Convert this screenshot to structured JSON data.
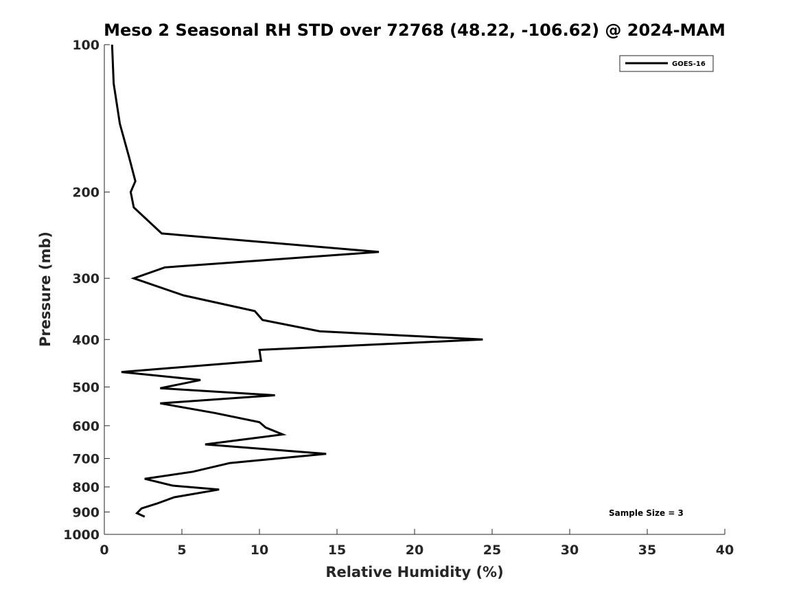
{
  "chart_data": {
    "type": "line",
    "title": "Meso 2 Seasonal RH STD over 72768 (48.22, -106.62) @ 2024-MAM",
    "xlabel": "Relative Humidity (%)",
    "ylabel": "Pressure (mb)",
    "xlim": [
      0,
      40
    ],
    "ylim": [
      1000,
      100
    ],
    "yscale": "log",
    "grid": false,
    "legend_position": "top-right",
    "xticks": [
      0,
      5,
      10,
      15,
      20,
      25,
      30,
      35,
      40
    ],
    "yticks": [
      100,
      200,
      300,
      400,
      500,
      600,
      700,
      800,
      900,
      1000
    ],
    "annotation": "Sample Size = 3",
    "series": [
      {
        "name": "GOES-16",
        "color": "#000000",
        "x": [
          0.5,
          0.6,
          1.0,
          1.6,
          2.0,
          1.7,
          1.9,
          3.7,
          17.7,
          3.9,
          1.9,
          5.1,
          9.7,
          10.2,
          13.9,
          24.4,
          10.0,
          10.1,
          1.1,
          6.2,
          3.6,
          11.0,
          3.6,
          7.1,
          10.0,
          10.4,
          11.5,
          6.5,
          14.3,
          8.1,
          5.7,
          2.6,
          4.4,
          7.4,
          4.5,
          3.4,
          2.4,
          2.1,
          2.6
        ],
        "y": [
          100,
          120,
          145,
          170,
          190,
          200,
          215,
          243,
          265,
          285,
          300,
          325,
          350,
          365,
          385,
          400,
          420,
          442,
          466,
          484,
          503,
          520,
          540,
          565,
          590,
          605,
          625,
          655,
          685,
          715,
          745,
          770,
          795,
          810,
          840,
          865,
          885,
          905,
          920
        ]
      }
    ]
  }
}
